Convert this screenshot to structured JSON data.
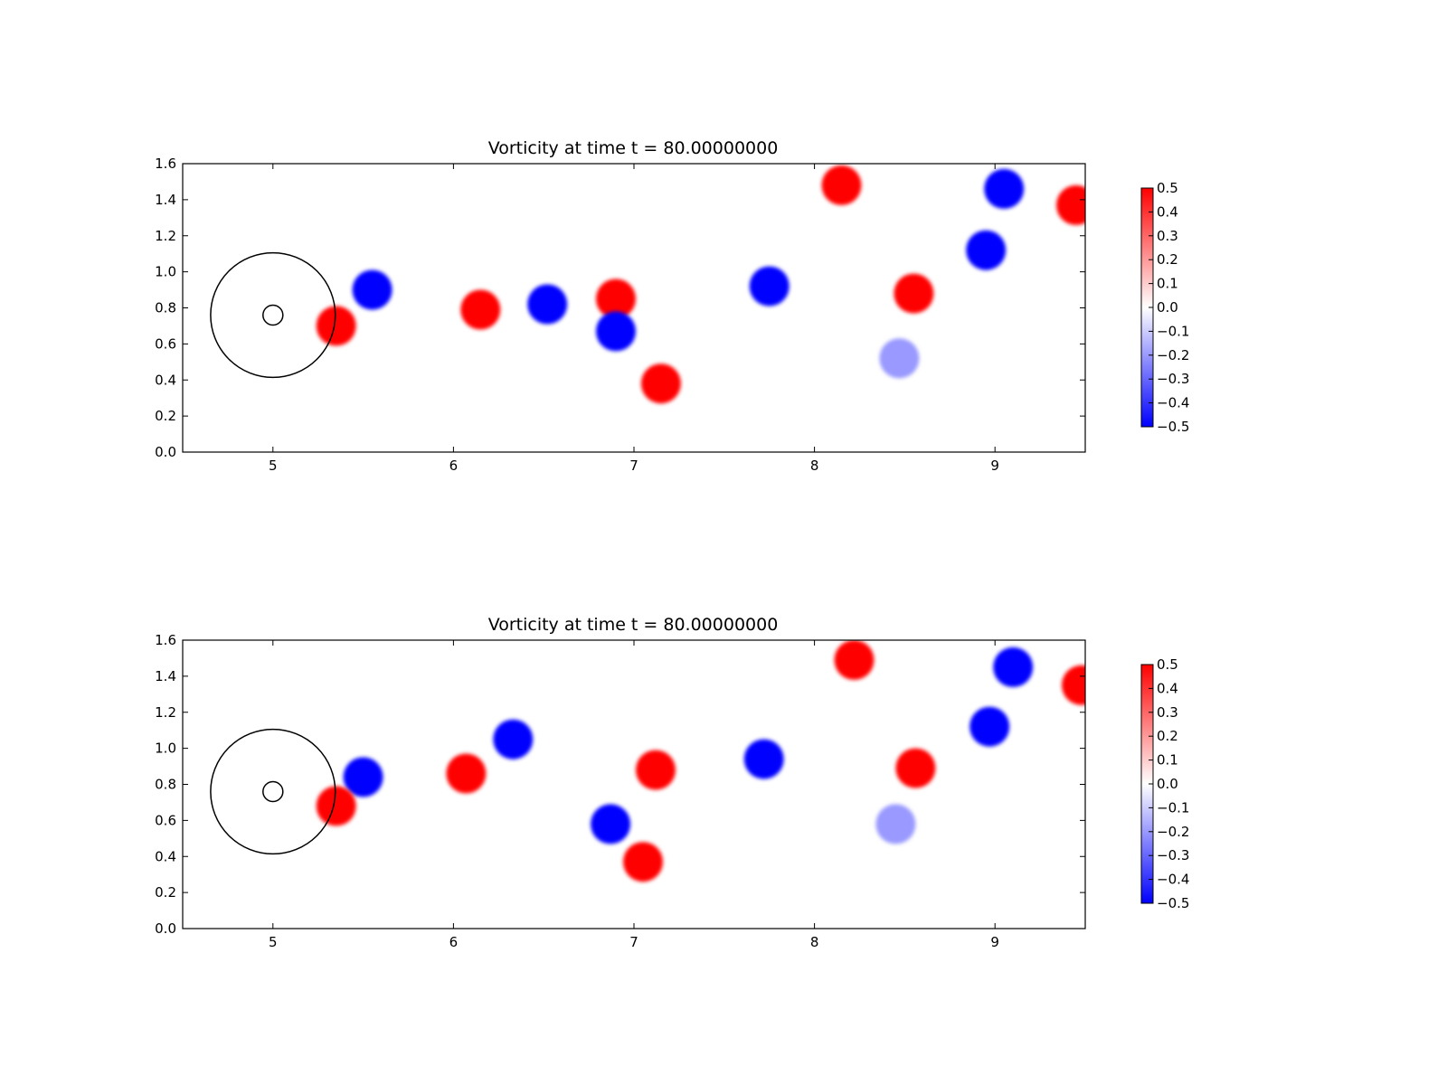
{
  "chart_data": [
    {
      "type": "heatmap",
      "title": "Vorticity at time t =    80.00000000",
      "xlim": [
        4.5,
        9.5
      ],
      "ylim": [
        0.0,
        1.6
      ],
      "xticks": [
        "5",
        "6",
        "7",
        "8",
        "9"
      ],
      "yticks": [
        "0.0",
        "0.2",
        "0.4",
        "0.6",
        "0.8",
        "1.0",
        "1.2",
        "1.4",
        "1.6"
      ],
      "colorbar": {
        "colormap": "bwr",
        "min": -0.5,
        "max": 0.5,
        "ticks": [
          "0.5",
          "0.4",
          "0.3",
          "0.2",
          "0.1",
          "0.0",
          "−0.1",
          "−0.2",
          "−0.3",
          "−0.4",
          "−0.5"
        ]
      },
      "circles": [
        {
          "cx": 5.0,
          "cy": 0.76,
          "r": 0.345
        },
        {
          "cx": 5.0,
          "cy": 0.76,
          "r": 0.055
        }
      ],
      "vortices": [
        {
          "x": 5.55,
          "y": 0.9,
          "value": -0.5
        },
        {
          "x": 5.35,
          "y": 0.7,
          "value": 0.5
        },
        {
          "x": 6.15,
          "y": 0.79,
          "value": 0.5
        },
        {
          "x": 6.52,
          "y": 0.82,
          "value": -0.5
        },
        {
          "x": 6.9,
          "y": 0.85,
          "value": 0.5
        },
        {
          "x": 6.9,
          "y": 0.67,
          "value": -0.5
        },
        {
          "x": 7.15,
          "y": 0.38,
          "value": 0.5
        },
        {
          "x": 7.75,
          "y": 0.92,
          "value": -0.5
        },
        {
          "x": 8.55,
          "y": 0.88,
          "value": 0.5
        },
        {
          "x": 8.95,
          "y": 1.12,
          "value": -0.5
        },
        {
          "x": 8.47,
          "y": 0.52,
          "value": -0.2
        },
        {
          "x": 8.15,
          "y": 1.48,
          "value": 0.5
        },
        {
          "x": 9.05,
          "y": 1.46,
          "value": -0.5
        },
        {
          "x": 9.45,
          "y": 1.37,
          "value": 0.5
        }
      ]
    },
    {
      "type": "heatmap",
      "title": "Vorticity at time t =    80.00000000",
      "xlim": [
        4.5,
        9.5
      ],
      "ylim": [
        0.0,
        1.6
      ],
      "xticks": [
        "5",
        "6",
        "7",
        "8",
        "9"
      ],
      "yticks": [
        "0.0",
        "0.2",
        "0.4",
        "0.6",
        "0.8",
        "1.0",
        "1.2",
        "1.4",
        "1.6"
      ],
      "colorbar": {
        "colormap": "bwr",
        "min": -0.5,
        "max": 0.5,
        "ticks": [
          "0.5",
          "0.4",
          "0.3",
          "0.2",
          "0.1",
          "0.0",
          "−0.1",
          "−0.2",
          "−0.3",
          "−0.4",
          "−0.5"
        ]
      },
      "circles": [
        {
          "cx": 5.0,
          "cy": 0.76,
          "r": 0.345
        },
        {
          "cx": 5.0,
          "cy": 0.76,
          "r": 0.055
        }
      ],
      "vortices": [
        {
          "x": 5.5,
          "y": 0.84,
          "value": -0.5
        },
        {
          "x": 5.35,
          "y": 0.68,
          "value": 0.5
        },
        {
          "x": 6.07,
          "y": 0.86,
          "value": 0.5
        },
        {
          "x": 6.33,
          "y": 1.05,
          "value": -0.5
        },
        {
          "x": 7.12,
          "y": 0.88,
          "value": 0.5
        },
        {
          "x": 6.87,
          "y": 0.58,
          "value": -0.5
        },
        {
          "x": 7.05,
          "y": 0.37,
          "value": 0.5
        },
        {
          "x": 7.72,
          "y": 0.94,
          "value": -0.5
        },
        {
          "x": 8.56,
          "y": 0.89,
          "value": 0.5
        },
        {
          "x": 8.97,
          "y": 1.12,
          "value": -0.5
        },
        {
          "x": 8.45,
          "y": 0.58,
          "value": -0.2
        },
        {
          "x": 8.22,
          "y": 1.49,
          "value": 0.5
        },
        {
          "x": 9.1,
          "y": 1.45,
          "value": -0.5
        },
        {
          "x": 9.48,
          "y": 1.35,
          "value": 0.5
        }
      ]
    }
  ]
}
